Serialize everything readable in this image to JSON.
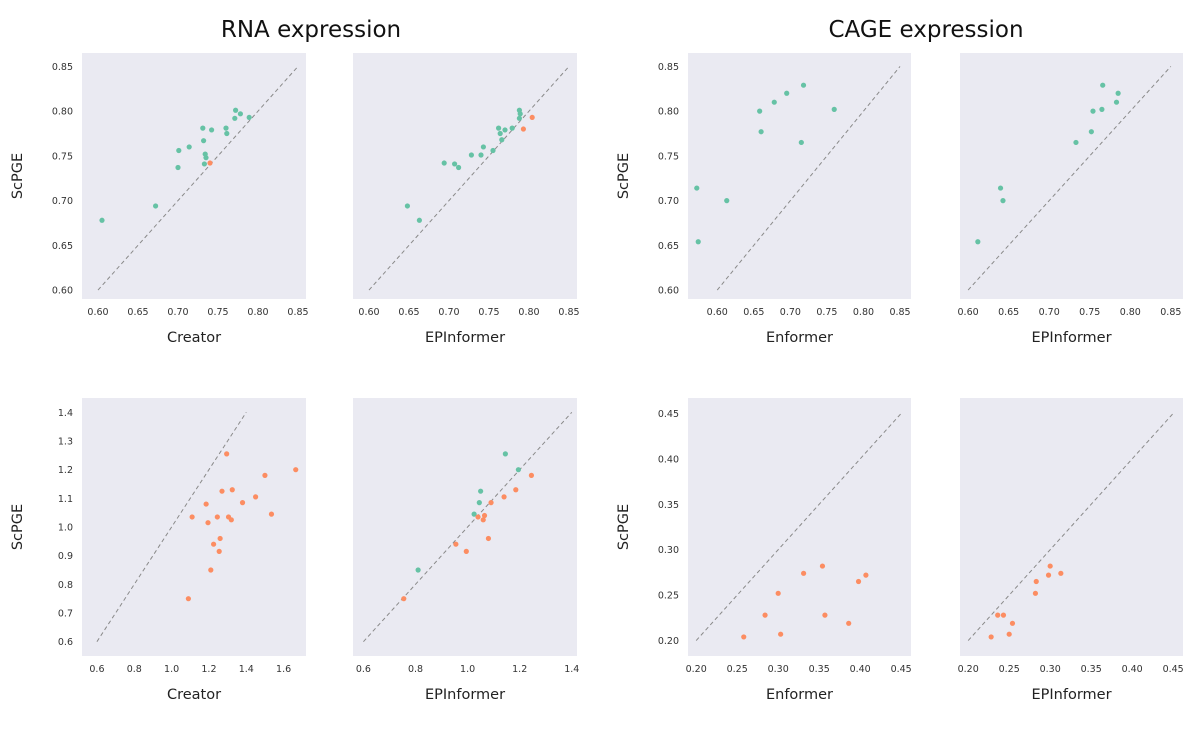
{
  "section_titles": [
    "RNA expression",
    "CAGE expression"
  ],
  "colors": {
    "panel_bg": "#eaeaf2",
    "green": "#66c2a5",
    "orange": "#fc8d62",
    "diagonal": "#8a8a8a"
  },
  "chart_data": [
    {
      "type": "scatter",
      "xlabel": "Creator",
      "ylabel": "ScPGE",
      "show_yticks": true,
      "xlim": [
        0.58,
        0.86
      ],
      "ylim": [
        0.59,
        0.865
      ],
      "xticks": [
        "0.60",
        "0.65",
        "0.70",
        "0.75",
        "0.80",
        "0.85"
      ],
      "yticks": [
        "0.60",
        "0.65",
        "0.70",
        "0.75",
        "0.80",
        "0.85"
      ],
      "diagonal": [
        0.6,
        0.85
      ],
      "grid": false,
      "points": [
        {
          "x": 0.605,
          "y": 0.678,
          "c": "green"
        },
        {
          "x": 0.672,
          "y": 0.694,
          "c": "green"
        },
        {
          "x": 0.7,
          "y": 0.737,
          "c": "green"
        },
        {
          "x": 0.701,
          "y": 0.756,
          "c": "green"
        },
        {
          "x": 0.714,
          "y": 0.76,
          "c": "green"
        },
        {
          "x": 0.731,
          "y": 0.781,
          "c": "green"
        },
        {
          "x": 0.732,
          "y": 0.767,
          "c": "green"
        },
        {
          "x": 0.734,
          "y": 0.752,
          "c": "green"
        },
        {
          "x": 0.735,
          "y": 0.748,
          "c": "green"
        },
        {
          "x": 0.733,
          "y": 0.741,
          "c": "green"
        },
        {
          "x": 0.742,
          "y": 0.779,
          "c": "green"
        },
        {
          "x": 0.76,
          "y": 0.781,
          "c": "green"
        },
        {
          "x": 0.761,
          "y": 0.775,
          "c": "green"
        },
        {
          "x": 0.771,
          "y": 0.792,
          "c": "green"
        },
        {
          "x": 0.772,
          "y": 0.801,
          "c": "green"
        },
        {
          "x": 0.778,
          "y": 0.797,
          "c": "green"
        },
        {
          "x": 0.789,
          "y": 0.793,
          "c": "green"
        },
        {
          "x": 0.74,
          "y": 0.742,
          "c": "orange"
        }
      ]
    },
    {
      "type": "scatter",
      "xlabel": "EPInformer",
      "ylabel": "",
      "show_yticks": false,
      "xlim": [
        0.58,
        0.86
      ],
      "ylim": [
        0.59,
        0.865
      ],
      "xticks": [
        "0.60",
        "0.65",
        "0.70",
        "0.75",
        "0.80",
        "0.85"
      ],
      "yticks": [],
      "diagonal": [
        0.6,
        0.85
      ],
      "grid": false,
      "points": [
        {
          "x": 0.648,
          "y": 0.694,
          "c": "green"
        },
        {
          "x": 0.663,
          "y": 0.678,
          "c": "green"
        },
        {
          "x": 0.694,
          "y": 0.742,
          "c": "green"
        },
        {
          "x": 0.707,
          "y": 0.741,
          "c": "green"
        },
        {
          "x": 0.712,
          "y": 0.737,
          "c": "green"
        },
        {
          "x": 0.728,
          "y": 0.751,
          "c": "green"
        },
        {
          "x": 0.74,
          "y": 0.751,
          "c": "green"
        },
        {
          "x": 0.743,
          "y": 0.76,
          "c": "green"
        },
        {
          "x": 0.755,
          "y": 0.756,
          "c": "green"
        },
        {
          "x": 0.762,
          "y": 0.781,
          "c": "green"
        },
        {
          "x": 0.764,
          "y": 0.775,
          "c": "green"
        },
        {
          "x": 0.766,
          "y": 0.768,
          "c": "green"
        },
        {
          "x": 0.77,
          "y": 0.779,
          "c": "green"
        },
        {
          "x": 0.779,
          "y": 0.781,
          "c": "green"
        },
        {
          "x": 0.788,
          "y": 0.801,
          "c": "green"
        },
        {
          "x": 0.789,
          "y": 0.797,
          "c": "green"
        },
        {
          "x": 0.788,
          "y": 0.792,
          "c": "green"
        },
        {
          "x": 0.793,
          "y": 0.78,
          "c": "orange"
        },
        {
          "x": 0.804,
          "y": 0.793,
          "c": "orange"
        }
      ]
    },
    {
      "type": "scatter",
      "xlabel": "Enformer",
      "ylabel": "ScPGE",
      "show_yticks": true,
      "xlim": [
        0.56,
        0.865
      ],
      "ylim": [
        0.59,
        0.865
      ],
      "xticks": [
        "0.60",
        "0.65",
        "0.70",
        "0.75",
        "0.80",
        "0.85"
      ],
      "yticks": [
        "0.60",
        "0.65",
        "0.70",
        "0.75",
        "0.80",
        "0.85"
      ],
      "diagonal": [
        0.6,
        0.85
      ],
      "grid": false,
      "points": [
        {
          "x": 0.572,
          "y": 0.714,
          "c": "green"
        },
        {
          "x": 0.574,
          "y": 0.654,
          "c": "green"
        },
        {
          "x": 0.613,
          "y": 0.7,
          "c": "green"
        },
        {
          "x": 0.658,
          "y": 0.8,
          "c": "green"
        },
        {
          "x": 0.66,
          "y": 0.777,
          "c": "green"
        },
        {
          "x": 0.678,
          "y": 0.81,
          "c": "green"
        },
        {
          "x": 0.695,
          "y": 0.82,
          "c": "green"
        },
        {
          "x": 0.715,
          "y": 0.765,
          "c": "green"
        },
        {
          "x": 0.718,
          "y": 0.829,
          "c": "green"
        },
        {
          "x": 0.76,
          "y": 0.802,
          "c": "green"
        }
      ]
    },
    {
      "type": "scatter",
      "xlabel": "EPInformer",
      "ylabel": "",
      "show_yticks": false,
      "xlim": [
        0.59,
        0.865
      ],
      "ylim": [
        0.59,
        0.865
      ],
      "xticks": [
        "0.60",
        "0.65",
        "0.70",
        "0.75",
        "0.80",
        "0.85"
      ],
      "yticks": [],
      "diagonal": [
        0.6,
        0.85
      ],
      "grid": false,
      "points": [
        {
          "x": 0.612,
          "y": 0.654,
          "c": "green"
        },
        {
          "x": 0.64,
          "y": 0.714,
          "c": "green"
        },
        {
          "x": 0.643,
          "y": 0.7,
          "c": "green"
        },
        {
          "x": 0.733,
          "y": 0.765,
          "c": "green"
        },
        {
          "x": 0.752,
          "y": 0.777,
          "c": "green"
        },
        {
          "x": 0.754,
          "y": 0.8,
          "c": "green"
        },
        {
          "x": 0.765,
          "y": 0.802,
          "c": "green"
        },
        {
          "x": 0.766,
          "y": 0.829,
          "c": "green"
        },
        {
          "x": 0.783,
          "y": 0.81,
          "c": "green"
        },
        {
          "x": 0.785,
          "y": 0.82,
          "c": "green"
        }
      ]
    },
    {
      "type": "scatter",
      "xlabel": "Creator",
      "ylabel": "ScPGE",
      "show_yticks": true,
      "xlim": [
        0.52,
        1.72
      ],
      "ylim": [
        0.55,
        1.45
      ],
      "xticks": [
        "0.6",
        "0.8",
        "1.0",
        "1.2",
        "1.4",
        "1.6"
      ],
      "yticks": [
        "0.6",
        "0.7",
        "0.8",
        "0.9",
        "1.0",
        "1.1",
        "1.2",
        "1.3",
        "1.4"
      ],
      "diagonal": [
        0.6,
        1.4
      ],
      "grid": false,
      "points": [
        {
          "x": 1.09,
          "y": 0.75,
          "c": "orange"
        },
        {
          "x": 1.11,
          "y": 1.035,
          "c": "orange"
        },
        {
          "x": 1.185,
          "y": 1.08,
          "c": "orange"
        },
        {
          "x": 1.195,
          "y": 1.015,
          "c": "orange"
        },
        {
          "x": 1.21,
          "y": 0.85,
          "c": "orange"
        },
        {
          "x": 1.225,
          "y": 0.94,
          "c": "orange"
        },
        {
          "x": 1.245,
          "y": 1.035,
          "c": "orange"
        },
        {
          "x": 1.26,
          "y": 0.96,
          "c": "orange"
        },
        {
          "x": 1.255,
          "y": 0.915,
          "c": "orange"
        },
        {
          "x": 1.27,
          "y": 1.125,
          "c": "orange"
        },
        {
          "x": 1.295,
          "y": 1.255,
          "c": "orange"
        },
        {
          "x": 1.305,
          "y": 1.035,
          "c": "orange"
        },
        {
          "x": 1.32,
          "y": 1.025,
          "c": "orange"
        },
        {
          "x": 1.325,
          "y": 1.13,
          "c": "orange"
        },
        {
          "x": 1.38,
          "y": 1.085,
          "c": "orange"
        },
        {
          "x": 1.45,
          "y": 1.105,
          "c": "orange"
        },
        {
          "x": 1.5,
          "y": 1.18,
          "c": "orange"
        },
        {
          "x": 1.535,
          "y": 1.045,
          "c": "orange"
        },
        {
          "x": 1.665,
          "y": 1.2,
          "c": "orange"
        }
      ]
    },
    {
      "type": "scatter",
      "xlabel": "EPInformer",
      "ylabel": "",
      "show_yticks": false,
      "xlim": [
        0.56,
        1.42
      ],
      "ylim": [
        0.55,
        1.45
      ],
      "xticks": [
        "0.6",
        "0.8",
        "1.0",
        "1.2",
        "1.4"
      ],
      "yticks": [],
      "diagonal": [
        0.6,
        1.4
      ],
      "grid": false,
      "points": [
        {
          "x": 0.81,
          "y": 0.85,
          "c": "green"
        },
        {
          "x": 1.025,
          "y": 1.045,
          "c": "green"
        },
        {
          "x": 1.045,
          "y": 1.085,
          "c": "green"
        },
        {
          "x": 1.05,
          "y": 1.125,
          "c": "green"
        },
        {
          "x": 1.145,
          "y": 1.255,
          "c": "green"
        },
        {
          "x": 1.195,
          "y": 1.2,
          "c": "green"
        },
        {
          "x": 0.755,
          "y": 0.75,
          "c": "orange"
        },
        {
          "x": 0.955,
          "y": 0.94,
          "c": "orange"
        },
        {
          "x": 0.995,
          "y": 0.915,
          "c": "orange"
        },
        {
          "x": 1.04,
          "y": 1.035,
          "c": "orange"
        },
        {
          "x": 1.06,
          "y": 1.025,
          "c": "orange"
        },
        {
          "x": 1.065,
          "y": 1.04,
          "c": "orange"
        },
        {
          "x": 1.08,
          "y": 0.96,
          "c": "orange"
        },
        {
          "x": 1.09,
          "y": 1.085,
          "c": "orange"
        },
        {
          "x": 1.14,
          "y": 1.105,
          "c": "orange"
        },
        {
          "x": 1.185,
          "y": 1.13,
          "c": "orange"
        },
        {
          "x": 1.245,
          "y": 1.18,
          "c": "orange"
        }
      ]
    },
    {
      "type": "scatter",
      "xlabel": "Enformer",
      "ylabel": "ScPGE",
      "show_yticks": true,
      "xlim": [
        0.19,
        0.462
      ],
      "ylim": [
        0.183,
        0.467
      ],
      "xticks": [
        "0.20",
        "0.25",
        "0.30",
        "0.35",
        "0.40",
        "0.45"
      ],
      "yticks": [
        "0.20",
        "0.25",
        "0.30",
        "0.35",
        "0.40",
        "0.45"
      ],
      "diagonal": [
        0.2,
        0.45
      ],
      "grid": false,
      "points": [
        {
          "x": 0.258,
          "y": 0.204,
          "c": "orange"
        },
        {
          "x": 0.284,
          "y": 0.228,
          "c": "orange"
        },
        {
          "x": 0.3,
          "y": 0.252,
          "c": "orange"
        },
        {
          "x": 0.303,
          "y": 0.207,
          "c": "orange"
        },
        {
          "x": 0.331,
          "y": 0.274,
          "c": "orange"
        },
        {
          "x": 0.354,
          "y": 0.282,
          "c": "orange"
        },
        {
          "x": 0.357,
          "y": 0.228,
          "c": "orange"
        },
        {
          "x": 0.386,
          "y": 0.219,
          "c": "orange"
        },
        {
          "x": 0.398,
          "y": 0.265,
          "c": "orange"
        },
        {
          "x": 0.407,
          "y": 0.272,
          "c": "orange"
        }
      ]
    },
    {
      "type": "scatter",
      "xlabel": "EPInformer",
      "ylabel": "",
      "show_yticks": false,
      "xlim": [
        0.19,
        0.462
      ],
      "ylim": [
        0.183,
        0.467
      ],
      "xticks": [
        "0.20",
        "0.25",
        "0.30",
        "0.35",
        "0.40",
        "0.45"
      ],
      "yticks": [],
      "diagonal": [
        0.2,
        0.45
      ],
      "grid": false,
      "points": [
        {
          "x": 0.228,
          "y": 0.204,
          "c": "orange"
        },
        {
          "x": 0.236,
          "y": 0.228,
          "c": "orange"
        },
        {
          "x": 0.243,
          "y": 0.228,
          "c": "orange"
        },
        {
          "x": 0.25,
          "y": 0.207,
          "c": "orange"
        },
        {
          "x": 0.254,
          "y": 0.219,
          "c": "orange"
        },
        {
          "x": 0.282,
          "y": 0.252,
          "c": "orange"
        },
        {
          "x": 0.283,
          "y": 0.265,
          "c": "orange"
        },
        {
          "x": 0.298,
          "y": 0.272,
          "c": "orange"
        },
        {
          "x": 0.3,
          "y": 0.282,
          "c": "orange"
        },
        {
          "x": 0.313,
          "y": 0.274,
          "c": "orange"
        }
      ]
    }
  ]
}
